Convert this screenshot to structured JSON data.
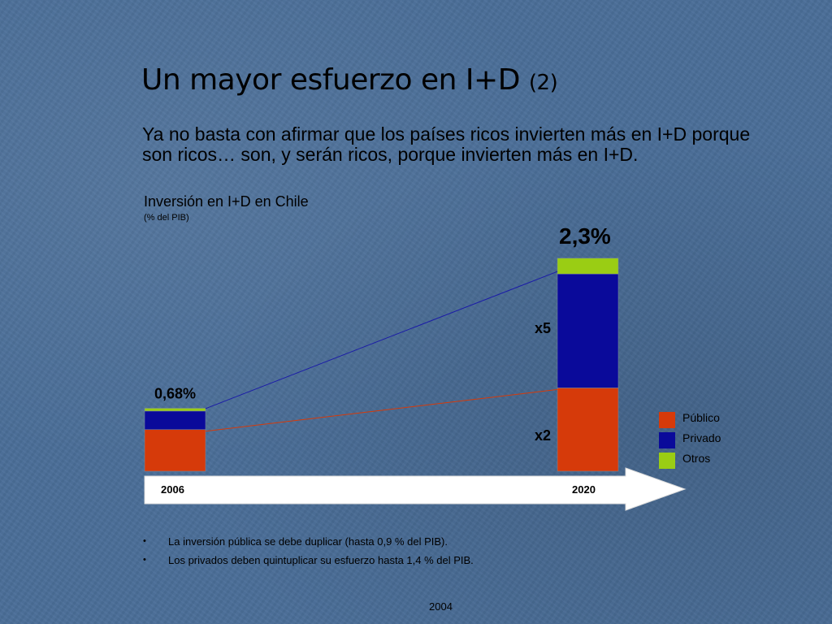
{
  "slide": {
    "title": "Un mayor esfuerzo en I+D",
    "title_suffix": "(2)",
    "intro": "Ya no basta con afirmar que los países ricos invierten más en I+D porque son ricos… son, y serán ricos, porque invierten más en I+D.",
    "bullets": [
      "La inversión pública se debe duplicar (hasta 0,9 % del PIB).",
      "Los privados deben quintuplicar su esfuerzo hasta 1,4 % del PIB."
    ],
    "footer": "2004"
  },
  "chart_data": {
    "type": "bar",
    "stacked": true,
    "title": "Inversión en I+D en Chile",
    "subtitle": "(% del PIB)",
    "categories": [
      "2006",
      "2020"
    ],
    "series": [
      {
        "name": "Público",
        "values": [
          0.45,
          0.9
        ],
        "color": "#d63a0a"
      },
      {
        "name": "Privado",
        "values": [
          0.2,
          1.23
        ],
        "color": "#0a0a9a"
      },
      {
        "name": "Otros",
        "values": [
          0.03,
          0.17
        ],
        "color": "#9acd14"
      }
    ],
    "totals": [
      "0,68%",
      "2,3%"
    ],
    "multipliers": [
      {
        "label": "x5",
        "series": "Privado"
      },
      {
        "label": "x2",
        "series": "Público"
      }
    ],
    "legend": "right"
  }
}
